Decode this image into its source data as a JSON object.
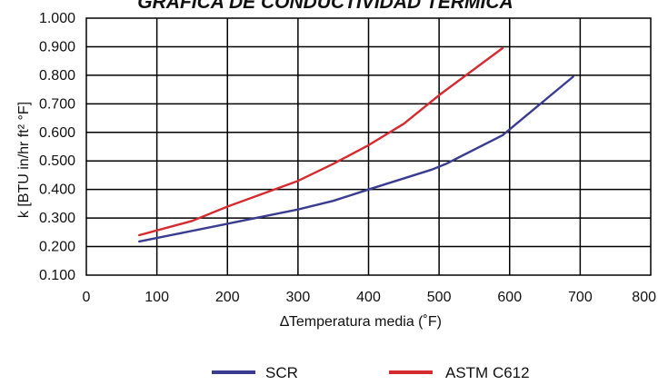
{
  "chart_data": {
    "type": "line",
    "title": "GRAFICA DE CONDUCTIVIDAD TÉRMICA",
    "xlabel": "∆Temperatura media (˚F)",
    "ylabel": "k [BTU in/hr ft² °F]",
    "xlim": [
      0,
      800
    ],
    "ylim": [
      0.1,
      1.0
    ],
    "x_ticks": [
      "0",
      "100",
      "200",
      "300",
      "400",
      "500",
      "600",
      "700",
      "800"
    ],
    "y_ticks": [
      "0.100",
      "0.200",
      "0.300",
      "0.400",
      "0.500",
      "0.600",
      "0.700",
      "0.800",
      "0.900",
      "1.000"
    ],
    "grid": true,
    "legend_position": "bottom",
    "series": [
      {
        "name": "SCR",
        "color": "#3a3d8f",
        "x": [
          75,
          100,
          200,
          300,
          350,
          400,
          490,
          510,
          590,
          690
        ],
        "y": [
          0.218,
          0.23,
          0.28,
          0.33,
          0.36,
          0.4,
          0.47,
          0.49,
          0.59,
          0.795
        ]
      },
      {
        "name": "ASTM C612",
        "color": "#d42b31",
        "x": [
          75,
          150,
          200,
          300,
          350,
          400,
          450,
          500,
          590
        ],
        "y": [
          0.24,
          0.29,
          0.34,
          0.43,
          0.49,
          0.555,
          0.63,
          0.73,
          0.895
        ]
      }
    ]
  }
}
